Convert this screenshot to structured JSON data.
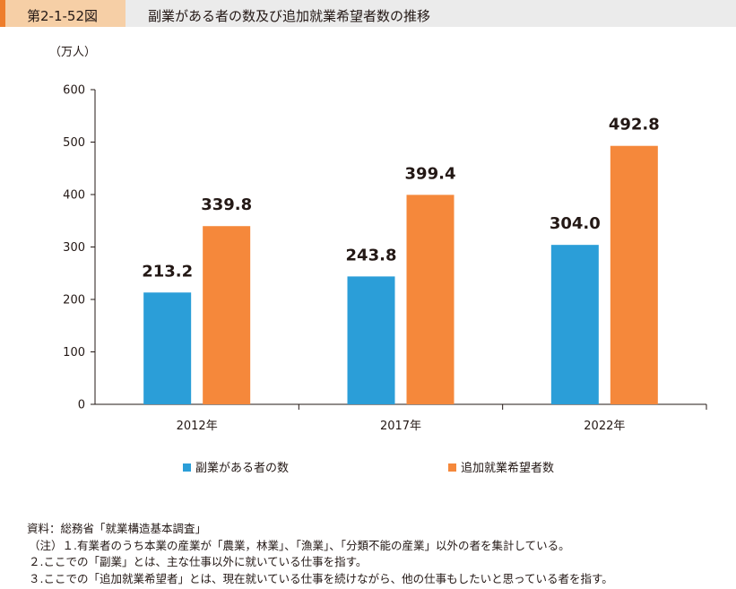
{
  "figure": {
    "number": "第2-1-52図",
    "title": "副業がある者の数及び追加就業希望者数の推移"
  },
  "chart_data": {
    "type": "bar",
    "unit_label": "（万人）",
    "categories": [
      "2012年",
      "2017年",
      "2022年"
    ],
    "series": [
      {
        "name": "副業がある者の数",
        "values": [
          213.2,
          243.8,
          304.0
        ],
        "labels": [
          "213.2",
          "243.8",
          "304.0"
        ],
        "color": "#2b9ed8"
      },
      {
        "name": "追加就業希望者数",
        "values": [
          339.8,
          399.4,
          492.8
        ],
        "labels": [
          "339.8",
          "399.4",
          "492.8"
        ],
        "color": "#f5883b"
      }
    ],
    "ylim": [
      0,
      600
    ],
    "yticks": [
      0,
      100,
      200,
      300,
      400,
      500,
      600
    ],
    "grid": false,
    "legend_position": "bottom"
  },
  "notes": [
    "資料：総務省「就業構造基本調査」",
    "（注）１.有業者のうち本業の産業が「農業，林業」、「漁業」、「分類不能の産業」以外の者を集計している。",
    "２.ここでの「副業」とは、主な仕事以外に就いている仕事を指す。",
    "３.ここでの「追加就業希望者」とは、現在就いている仕事を続けながら、他の仕事もしたいと思っている者を指す。"
  ]
}
